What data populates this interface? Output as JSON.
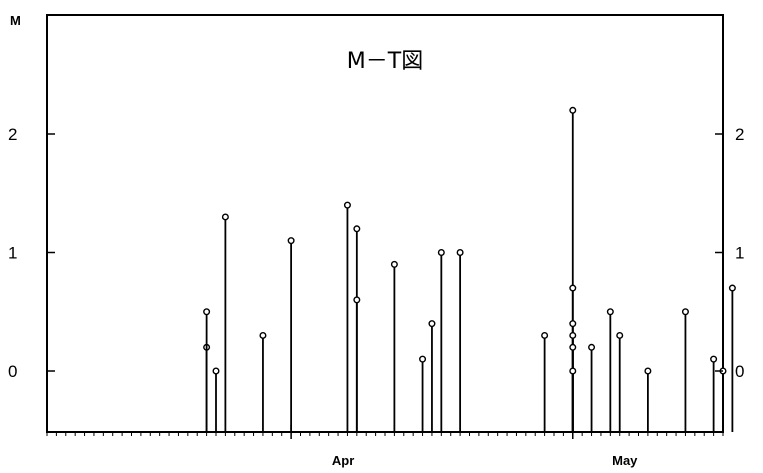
{
  "chart_data": {
    "type": "lollipop",
    "title": "M－T図",
    "ylabel": "M",
    "ylim": [
      -0.5,
      3.0
    ],
    "yticks": [
      0,
      1,
      2
    ],
    "xlim": [
      "2015-03-06",
      "2015-05-17"
    ],
    "month_labels": [
      {
        "label": "Apr",
        "date": "2015-04-01"
      },
      {
        "label": "May",
        "date": "2015-05-01"
      }
    ],
    "baseline": -0.5,
    "points": [
      {
        "date": "2015-03-23",
        "m": 0.2
      },
      {
        "date": "2015-03-23",
        "m": 0.5
      },
      {
        "date": "2015-03-24",
        "m": 0.0
      },
      {
        "date": "2015-03-25",
        "m": 1.3
      },
      {
        "date": "2015-03-29",
        "m": 0.3
      },
      {
        "date": "2015-04-01",
        "m": 1.1
      },
      {
        "date": "2015-04-07",
        "m": 1.4
      },
      {
        "date": "2015-04-08",
        "m": 1.2
      },
      {
        "date": "2015-04-08",
        "m": 0.6
      },
      {
        "date": "2015-04-12",
        "m": 0.9
      },
      {
        "date": "2015-04-15",
        "m": 0.1
      },
      {
        "date": "2015-04-16",
        "m": 0.4
      },
      {
        "date": "2015-04-17",
        "m": 1.0
      },
      {
        "date": "2015-04-19",
        "m": 1.0
      },
      {
        "date": "2015-04-28",
        "m": 0.3
      },
      {
        "date": "2015-05-01",
        "m": 2.2
      },
      {
        "date": "2015-05-01",
        "m": 0.7
      },
      {
        "date": "2015-05-01",
        "m": 0.4
      },
      {
        "date": "2015-05-01",
        "m": 0.3
      },
      {
        "date": "2015-05-01",
        "m": 0.2
      },
      {
        "date": "2015-05-01",
        "m": 0.0
      },
      {
        "date": "2015-05-03",
        "m": 0.2
      },
      {
        "date": "2015-05-05",
        "m": 0.5
      },
      {
        "date": "2015-05-06",
        "m": 0.3
      },
      {
        "date": "2015-05-09",
        "m": 0.0
      },
      {
        "date": "2015-05-13",
        "m": 0.5
      },
      {
        "date": "2015-05-16",
        "m": 0.1
      },
      {
        "date": "2015-05-17",
        "m": 0.0
      },
      {
        "date": "2015-05-18",
        "m": 0.7
      }
    ]
  }
}
